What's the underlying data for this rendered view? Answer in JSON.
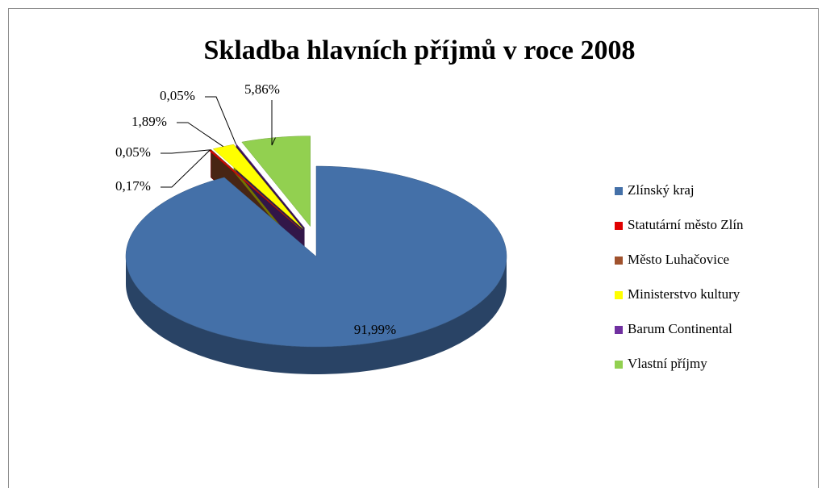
{
  "chart_data": {
    "type": "pie3d",
    "title": "Skladba hlavních příjmů v roce 2008",
    "categories": [
      "Zlínský kraj",
      "Statutární město Zlín",
      "Město Luhačovice",
      "Ministerstvo kultury",
      "Barum Continental",
      "Vlastní příjmy"
    ],
    "values": [
      91.99,
      0.17,
      0.05,
      1.89,
      0.05,
      5.86
    ],
    "value_labels": [
      "91,99%",
      "0,17%",
      "0,05%",
      "1,89%",
      "0,05%",
      "5,86%"
    ],
    "colors": [
      "#4470a8",
      "#e00000",
      "#a0522d",
      "#ffff00",
      "#7030a0",
      "#92d050"
    ],
    "legend": "right"
  }
}
